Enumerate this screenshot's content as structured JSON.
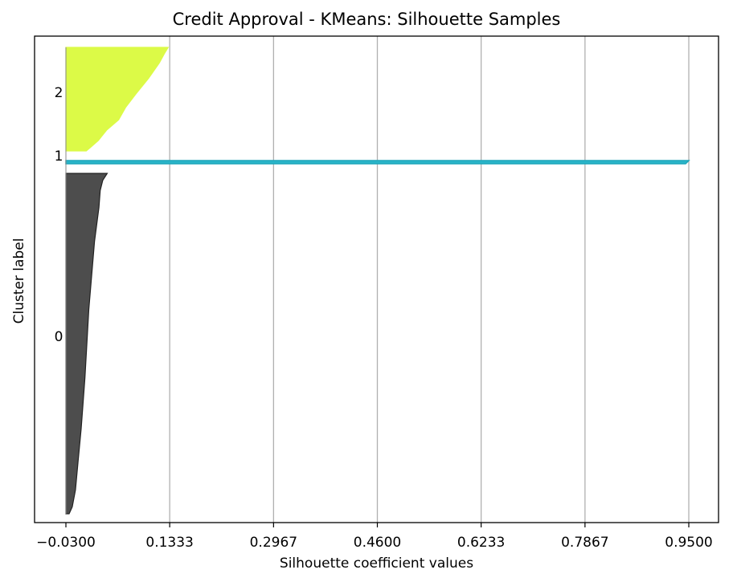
{
  "chart_data": {
    "type": "area",
    "title": "Credit Approval - KMeans: Silhouette Samples",
    "xlabel": "Silhouette coefficient values",
    "ylabel": "Cluster label",
    "xlim": [
      -0.1,
      1.0
    ],
    "xticks": [
      "−0.0300",
      "0.1333",
      "0.2967",
      "0.4600",
      "0.6233",
      "0.7867",
      "0.9500"
    ],
    "grid": "x-axis vertical lines",
    "clusters": [
      {
        "label": "0",
        "color": "#4d4d4d",
        "profile": [
          {
            "x": 0.035,
            "frac": 0.0
          },
          {
            "x": 0.028,
            "frac": 0.02
          },
          {
            "x": 0.024,
            "frac": 0.05
          },
          {
            "x": 0.022,
            "frac": 0.1
          },
          {
            "x": 0.015,
            "frac": 0.2
          },
          {
            "x": 0.006,
            "frac": 0.4
          },
          {
            "x": 0.0,
            "frac": 0.6
          },
          {
            "x": -0.006,
            "frac": 0.75
          },
          {
            "x": -0.011,
            "frac": 0.85
          },
          {
            "x": -0.015,
            "frac": 0.93
          },
          {
            "x": -0.02,
            "frac": 0.98
          },
          {
            "x": -0.025,
            "frac": 1.0
          }
        ]
      },
      {
        "label": "1",
        "color": "#2ab5c9",
        "profile": [
          {
            "x": 0.95,
            "frac": 0.0
          },
          {
            "x": 0.945,
            "frac": 1.0
          }
        ]
      },
      {
        "label": "2",
        "color": "#dcfa47",
        "profile": [
          {
            "x": 0.131,
            "frac": 0.0
          },
          {
            "x": 0.125,
            "frac": 0.06
          },
          {
            "x": 0.117,
            "frac": 0.15
          },
          {
            "x": 0.1,
            "frac": 0.3
          },
          {
            "x": 0.08,
            "frac": 0.45
          },
          {
            "x": 0.064,
            "frac": 0.58
          },
          {
            "x": 0.053,
            "frac": 0.7
          },
          {
            "x": 0.034,
            "frac": 0.8
          },
          {
            "x": 0.021,
            "frac": 0.9
          },
          {
            "x": 0.008,
            "frac": 0.97
          },
          {
            "x": 0.002,
            "frac": 1.0
          }
        ]
      }
    ]
  }
}
